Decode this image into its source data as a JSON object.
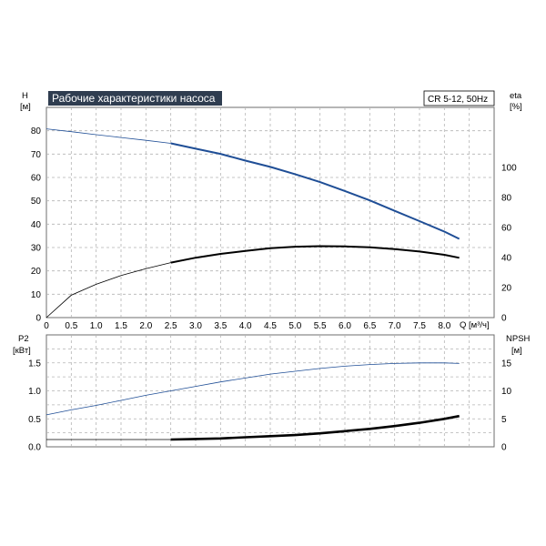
{
  "chart_data": [
    {
      "type": "line",
      "title": "Рабочие характеристики насоса",
      "badge": "CR 5-12, 50Hz",
      "xlabel": "Q [м³/ч]",
      "ylabel": "H",
      "ylabel_unit": "[м]",
      "y2label": "eta",
      "y2label_unit": "[%]",
      "xlim": [
        0,
        9
      ],
      "ylim": [
        0,
        90
      ],
      "y2lim": [
        0,
        140
      ],
      "x_ticks": [
        "0",
        "0.5",
        "1.0",
        "1.5",
        "2.0",
        "2.5",
        "3.0",
        "3.5",
        "4.0",
        "4.5",
        "5.0",
        "5.5",
        "6.0",
        "6.5",
        "7.0",
        "7.5",
        "8.0"
      ],
      "y_ticks": [
        "0",
        "10",
        "20",
        "30",
        "40",
        "50",
        "60",
        "70",
        "80"
      ],
      "y2_ticks": [
        "0",
        "20",
        "40",
        "60",
        "80",
        "100"
      ],
      "grid": true,
      "series": [
        {
          "axis": "left",
          "color": "#1f4e96",
          "x": [
            0,
            0.5,
            1.0,
            1.5,
            2.0,
            2.5,
            3.0,
            3.5,
            4.0,
            4.5,
            5.0,
            5.5,
            6.0,
            6.5,
            7.0,
            7.5,
            8.0,
            8.3
          ],
          "y": [
            80.8,
            79.6,
            78.3,
            77.1,
            75.9,
            74.6,
            72.3,
            70.1,
            67.2,
            64.5,
            61.4,
            58.0,
            54.2,
            50.2,
            45.7,
            41.3,
            36.8,
            33.7
          ],
          "bold_from": 2.5
        },
        {
          "axis": "right",
          "color": "#000000",
          "x": [
            0,
            0.5,
            1.0,
            1.5,
            2.0,
            2.5,
            3.0,
            3.5,
            4.0,
            4.5,
            5.0,
            5.5,
            6.0,
            6.5,
            7.0,
            7.5,
            8.0,
            8.3
          ],
          "y": [
            0,
            14.9,
            22.2,
            28.0,
            32.6,
            36.6,
            39.9,
            42.4,
            44.4,
            46.2,
            47.2,
            47.6,
            47.4,
            46.8,
            45.6,
            44.0,
            41.8,
            39.8
          ],
          "bold_from": 2.5
        }
      ]
    },
    {
      "type": "line",
      "ylabel": "P2",
      "ylabel_unit": "[кВт]",
      "y2label": "NPSH",
      "y2label_unit": "[м]",
      "xlim": [
        0,
        9
      ],
      "ylim": [
        0,
        2.0
      ],
      "y2lim": [
        0,
        20
      ],
      "y_ticks": [
        "0.0",
        "0.5",
        "1.0",
        "1.5"
      ],
      "y2_ticks": [
        "0",
        "5",
        "10",
        "15"
      ],
      "grid": true,
      "series": [
        {
          "axis": "left",
          "color": "#1f4e96",
          "x": [
            0,
            0.5,
            1.0,
            1.5,
            2.0,
            2.5,
            3.0,
            3.5,
            4.0,
            4.5,
            5.0,
            5.5,
            6.0,
            6.5,
            7.0,
            7.5,
            8.0,
            8.3
          ],
          "y": [
            0.57,
            0.66,
            0.74,
            0.83,
            0.92,
            1.0,
            1.08,
            1.16,
            1.23,
            1.3,
            1.35,
            1.4,
            1.44,
            1.47,
            1.49,
            1.5,
            1.5,
            1.49
          ],
          "bold_from": 99
        },
        {
          "axis": "right",
          "color": "#000000",
          "x": [
            0,
            0.5,
            1.0,
            1.5,
            2.0,
            2.5,
            3.0,
            3.5,
            4.0,
            4.5,
            5.0,
            5.5,
            6.0,
            6.5,
            7.0,
            7.5,
            8.0,
            8.3
          ],
          "y": [
            1.3,
            1.3,
            1.3,
            1.3,
            1.3,
            1.3,
            1.4,
            1.5,
            1.7,
            1.9,
            2.1,
            2.4,
            2.8,
            3.2,
            3.7,
            4.3,
            5.0,
            5.5
          ],
          "bold_from": 2.5
        }
      ]
    }
  ]
}
